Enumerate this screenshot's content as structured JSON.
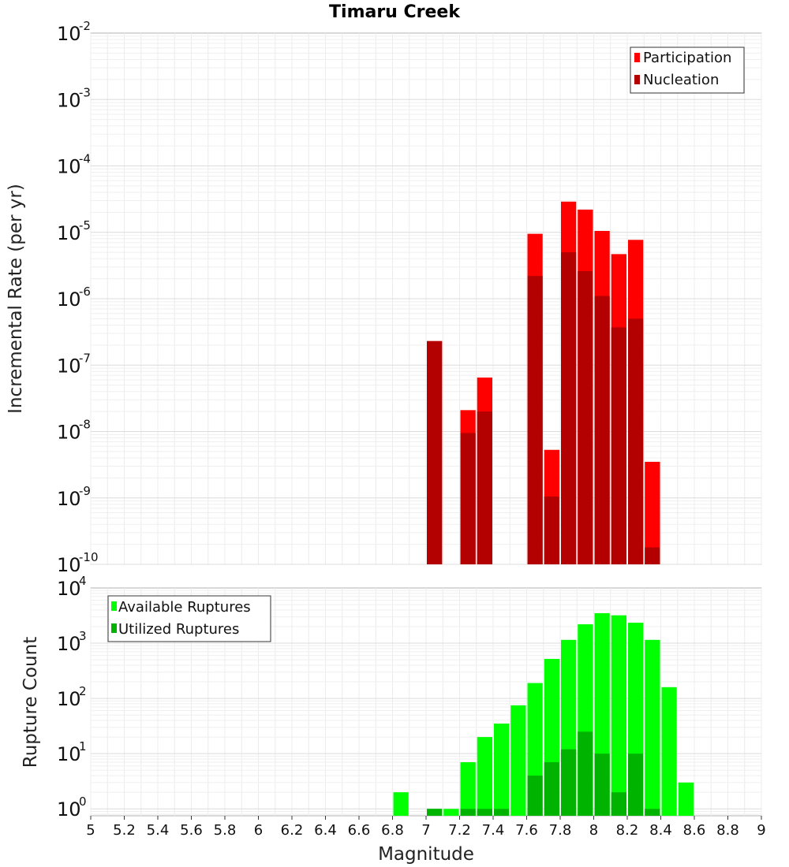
{
  "chart_data": [
    {
      "type": "bar",
      "title": "Timaru Creek",
      "ylabel": "Incremental Rate (per yr)",
      "xlabel": "",
      "y_scale": "log",
      "ylim": [
        1e-10,
        0.01
      ],
      "xlim": [
        5,
        9
      ],
      "grid": true,
      "legend_position": "top-right",
      "bar_width": 0.1,
      "series": [
        {
          "name": "Participation",
          "color": "#ff0000",
          "points": [
            {
              "x": 7.05,
              "y": 2.3e-07
            },
            {
              "x": 7.25,
              "y": 2.1e-08
            },
            {
              "x": 7.35,
              "y": 6.5e-08
            },
            {
              "x": 7.65,
              "y": 9.5e-06
            },
            {
              "x": 7.75,
              "y": 5.3e-09
            },
            {
              "x": 7.85,
              "y": 2.9e-05
            },
            {
              "x": 7.95,
              "y": 2.2e-05
            },
            {
              "x": 8.05,
              "y": 1.05e-05
            },
            {
              "x": 8.15,
              "y": 4.7e-06
            },
            {
              "x": 8.25,
              "y": 7.7e-06
            },
            {
              "x": 8.35,
              "y": 3.5e-09
            }
          ]
        },
        {
          "name": "Nucleation",
          "color": "#b30000",
          "points": [
            {
              "x": 7.05,
              "y": 2.3e-07
            },
            {
              "x": 7.25,
              "y": 9.5e-09
            },
            {
              "x": 7.35,
              "y": 2e-08
            },
            {
              "x": 7.65,
              "y": 2.2e-06
            },
            {
              "x": 7.75,
              "y": 1.05e-09
            },
            {
              "x": 7.85,
              "y": 5e-06
            },
            {
              "x": 7.95,
              "y": 2.6e-06
            },
            {
              "x": 8.05,
              "y": 1.1e-06
            },
            {
              "x": 8.15,
              "y": 3.7e-07
            },
            {
              "x": 8.25,
              "y": 5e-07
            },
            {
              "x": 8.35,
              "y": 1.8e-10
            }
          ]
        }
      ]
    },
    {
      "type": "bar",
      "title": "",
      "ylabel": "Rupture Count",
      "xlabel": "Magnitude",
      "y_scale": "log",
      "ylim": [
        0.75,
        10000
      ],
      "xlim": [
        5,
        9
      ],
      "grid": true,
      "legend_position": "top-left",
      "bar_width": 0.1,
      "series": [
        {
          "name": "Available Ruptures",
          "color": "#00ff00",
          "points": [
            {
              "x": 6.85,
              "y": 2
            },
            {
              "x": 7.05,
              "y": 1
            },
            {
              "x": 7.15,
              "y": 1
            },
            {
              "x": 7.25,
              "y": 7
            },
            {
              "x": 7.35,
              "y": 20
            },
            {
              "x": 7.45,
              "y": 35
            },
            {
              "x": 7.55,
              "y": 75
            },
            {
              "x": 7.65,
              "y": 190
            },
            {
              "x": 7.75,
              "y": 520
            },
            {
              "x": 7.85,
              "y": 1150
            },
            {
              "x": 7.95,
              "y": 2200
            },
            {
              "x": 8.05,
              "y": 3500
            },
            {
              "x": 8.15,
              "y": 3200
            },
            {
              "x": 8.25,
              "y": 2350
            },
            {
              "x": 8.35,
              "y": 1150
            },
            {
              "x": 8.45,
              "y": 160
            },
            {
              "x": 8.55,
              "y": 3
            }
          ]
        },
        {
          "name": "Utilized Ruptures",
          "color": "#00b300",
          "points": [
            {
              "x": 7.05,
              "y": 1
            },
            {
              "x": 7.25,
              "y": 1
            },
            {
              "x": 7.35,
              "y": 1
            },
            {
              "x": 7.45,
              "y": 1
            },
            {
              "x": 7.65,
              "y": 4
            },
            {
              "x": 7.75,
              "y": 7
            },
            {
              "x": 7.85,
              "y": 12
            },
            {
              "x": 7.95,
              "y": 25
            },
            {
              "x": 8.05,
              "y": 10
            },
            {
              "x": 8.15,
              "y": 2
            },
            {
              "x": 8.25,
              "y": 10
            },
            {
              "x": 8.35,
              "y": 1
            }
          ]
        }
      ]
    }
  ],
  "x_ticks": [
    "5",
    "5.2",
    "5.4",
    "5.6",
    "5.8",
    "6",
    "6.2",
    "6.4",
    "6.6",
    "6.8",
    "7",
    "7.2",
    "7.4",
    "7.6",
    "7.8",
    "8",
    "8.2",
    "8.4",
    "8.6",
    "8.8",
    "9"
  ],
  "top_y_ticks": [
    {
      "base": "10",
      "exp": "-2"
    },
    {
      "base": "10",
      "exp": "-3"
    },
    {
      "base": "10",
      "exp": "-4"
    },
    {
      "base": "10",
      "exp": "-5"
    },
    {
      "base": "10",
      "exp": "-6"
    },
    {
      "base": "10",
      "exp": "-7"
    },
    {
      "base": "10",
      "exp": "-8"
    },
    {
      "base": "10",
      "exp": "-9"
    },
    {
      "base": "10",
      "exp": "-10"
    }
  ],
  "bottom_y_ticks": [
    {
      "base": "10",
      "exp": "4"
    },
    {
      "base": "10",
      "exp": "3"
    },
    {
      "base": "10",
      "exp": "2"
    },
    {
      "base": "10",
      "exp": "1"
    },
    {
      "base": "10",
      "exp": "0"
    }
  ]
}
